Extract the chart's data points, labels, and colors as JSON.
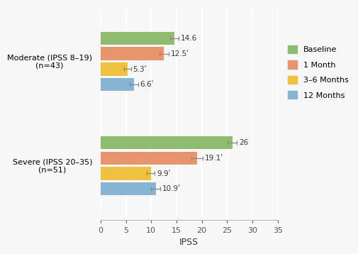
{
  "groups": [
    {
      "label": "Moderate (IPSS 8–19)\n(n=43)",
      "values": [
        14.6,
        12.5,
        5.3,
        6.6
      ],
      "errors": [
        0.8,
        0.9,
        0.7,
        0.8
      ]
    },
    {
      "label": "Severe (IPSS 20–35)\n(n=51)",
      "values": [
        26,
        19.1,
        9.9,
        10.9
      ],
      "errors": [
        0.9,
        1.1,
        0.8,
        0.9
      ]
    }
  ],
  "categories": [
    "Baseline",
    "1 Month",
    "3–6 Months",
    "12 Months"
  ],
  "colors": [
    "#8fbc6e",
    "#e8956d",
    "#f0c040",
    "#88b4d4"
  ],
  "xlim": [
    0,
    35
  ],
  "xticks": [
    0,
    5,
    10,
    15,
    20,
    25,
    30,
    35
  ],
  "xlabel": "IPSS",
  "bar_height": 0.055,
  "annotations": [
    [
      "14.6",
      "12.5ʹ",
      "5.3ʹ",
      "6.6ʹ"
    ],
    [
      "26",
      "19.1ʹ",
      "9.9ʹ",
      "10.9ʹ"
    ]
  ],
  "bg_color": "#f7f7f7",
  "grid_color": "#ffffff",
  "legend_labels": [
    "Baseline",
    "1 Month",
    "3–6 Months",
    "12 Months"
  ],
  "group_centers": [
    0.72,
    0.28
  ],
  "bar_spacing": 0.065
}
